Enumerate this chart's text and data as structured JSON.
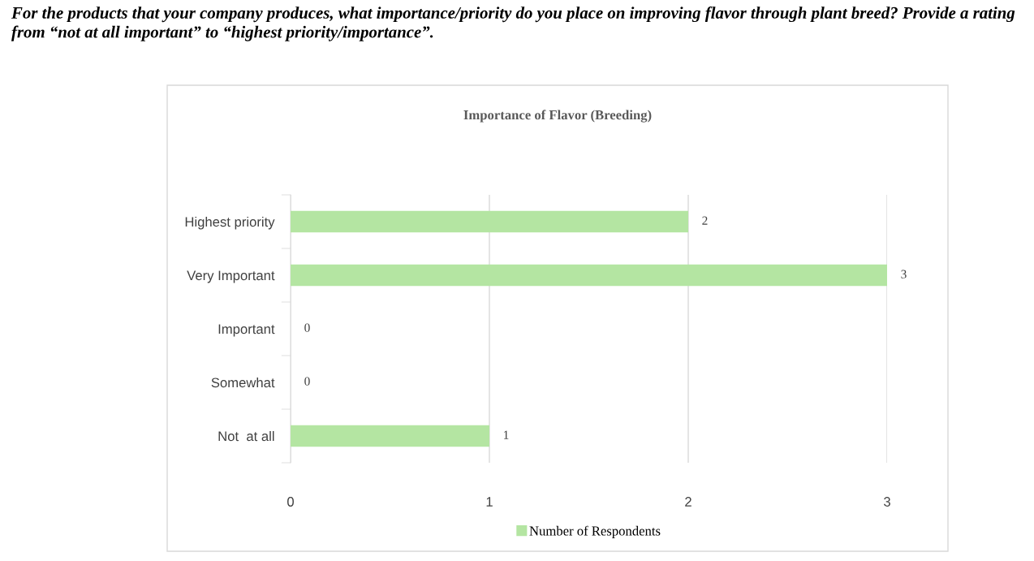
{
  "chart_data": {
    "type": "bar",
    "orientation": "horizontal",
    "annotations": [
      "For the products that your company produces, what importance/priority do you place on improving flavor through plant breed? Provide a rating from “not at all important” to “highest priority/importance”."
    ],
    "title": "Importance of Flavor (Breeding)",
    "categories": [
      "Highest priority",
      "Very Important",
      "Important",
      "Somewhat",
      "Not  at all"
    ],
    "series": [
      {
        "name": "Number of Respondents",
        "color": "#b4e5a2",
        "values": [
          2,
          3,
          0,
          0,
          1
        ]
      }
    ],
    "xlim": [
      0,
      3
    ],
    "xticks": [
      0,
      1,
      2,
      3
    ],
    "grid": "x",
    "legend": "bottom",
    "data_labels": true
  }
}
